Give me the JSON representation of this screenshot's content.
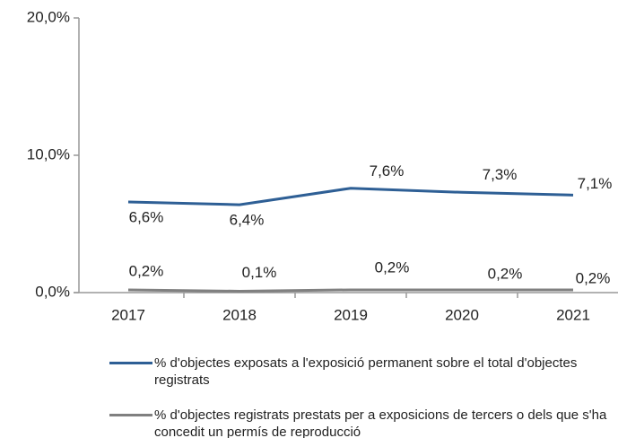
{
  "chart_data": {
    "type": "line",
    "categories": [
      "2017",
      "2018",
      "2019",
      "2020",
      "2021"
    ],
    "series": [
      {
        "name": "% d'objectes exposats a l'exposició permanent sobre el total d'objectes registrats",
        "color": "#2e5f95",
        "values": [
          6.6,
          6.4,
          7.6,
          7.3,
          7.1
        ],
        "value_labels": [
          "6,6%",
          "6,4%",
          "7,6%",
          "7,3%",
          "7,1%"
        ]
      },
      {
        "name": "% d'objectes registrats prestats per a exposicions de tercers o dels que s'ha concedit un permís de reproducció",
        "color": "#808080",
        "values": [
          0.2,
          0.1,
          0.2,
          0.2,
          0.2
        ],
        "value_labels": [
          "0,2%",
          "0,1%",
          "0,2%",
          "0,2%",
          "0,2%"
        ]
      }
    ],
    "ylim": [
      0,
      20
    ],
    "yticks": [
      {
        "value": 0,
        "label": "0,0%"
      },
      {
        "value": 10,
        "label": "10,0%"
      },
      {
        "value": 20,
        "label": "20,0%"
      }
    ],
    "grid": false
  }
}
